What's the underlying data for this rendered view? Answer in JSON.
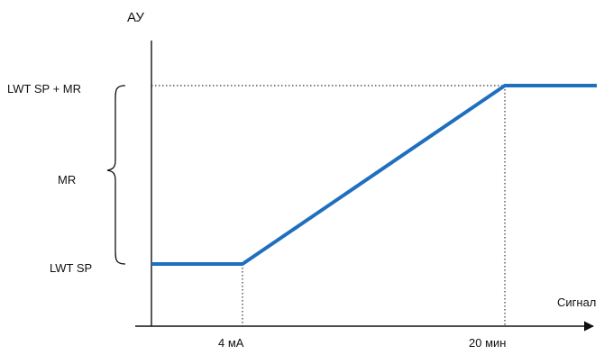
{
  "labels": {
    "y_axis": "АУ",
    "x_axis": "Сигнал",
    "top_level": "LWT SP + MR",
    "range": "MR",
    "bottom_level": "LWT SP",
    "x_start": "4 мА",
    "x_end": "20 мин"
  },
  "colors": {
    "curve": "#1f6fbf",
    "axis": "#111111",
    "guides": "#333333"
  },
  "chart_data": {
    "type": "line",
    "x_ticks": [
      "4 мА",
      "20 мин"
    ],
    "y_ticks": [
      "LWT SP",
      "LWT SP + MR"
    ],
    "series": [
      {
        "points": [
          [
            "start",
            "LWT SP"
          ],
          [
            "4 мА",
            "LWT SP"
          ],
          [
            "20 мин",
            "LWT SP + MR"
          ],
          [
            "end",
            "LWT SP + MR"
          ]
        ]
      }
    ],
    "guides": "dotted",
    "range_brace": "MR"
  }
}
